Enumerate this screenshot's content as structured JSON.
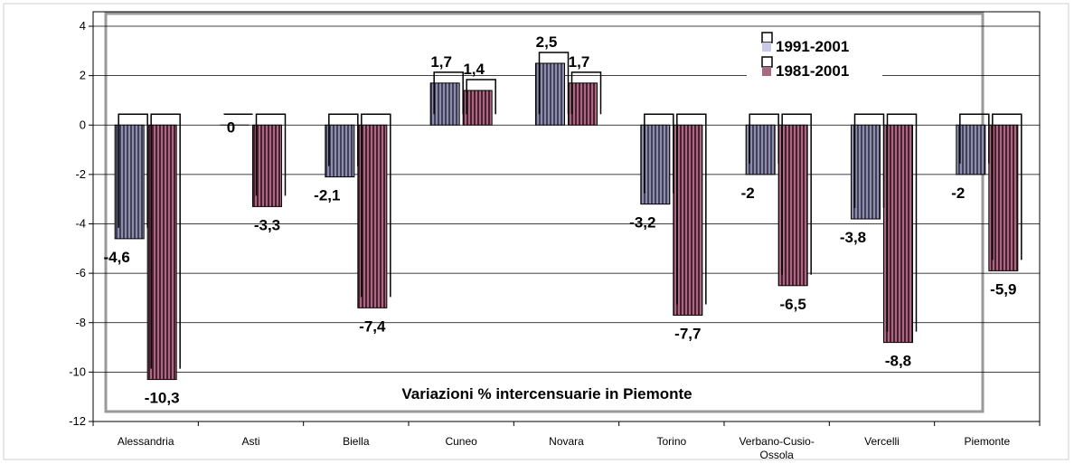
{
  "chart_data": {
    "type": "bar",
    "title": "Variazioni  %  intercensuarie in Piemonte",
    "categories": [
      "Alessandria",
      "Asti",
      "Biella",
      "Cuneo",
      "Novara",
      "Torino",
      "Verbano-Cusio-Ossola",
      "Vercelli",
      "Piemonte"
    ],
    "series": [
      {
        "name": "1991-2001",
        "values": [
          -4.6,
          0,
          -2.1,
          1.7,
          2.5,
          -3.2,
          -2,
          -3.8,
          -2
        ],
        "labels": [
          "-4,6",
          "0",
          "-2,1",
          "1,7",
          "2,5",
          "-3,2",
          "-2",
          "-3,8",
          "-2"
        ],
        "color": "#6f6f8c"
      },
      {
        "name": "1981-2001",
        "values": [
          -10.3,
          -3.3,
          -7.4,
          1.4,
          1.7,
          -7.7,
          -6.5,
          -8.8,
          -5.9
        ],
        "labels": [
          "-10,3",
          "-3,3",
          "-7,4",
          "1,4",
          "1,7",
          "-7,7",
          "-6,5",
          "-8,8",
          "-5,9"
        ],
        "color": "#7a3d52"
      }
    ],
    "ylim": [
      -12,
      4
    ],
    "yticks": [
      "4",
      "2",
      "0",
      "-2",
      "-4",
      "-6",
      "-8",
      "-10",
      "-12"
    ],
    "ytick_values": [
      4,
      2,
      0,
      -2,
      -4,
      -6,
      -8,
      -10,
      -12
    ],
    "grid": true,
    "legend_position": "top-right",
    "xlabel": "",
    "ylabel": ""
  }
}
